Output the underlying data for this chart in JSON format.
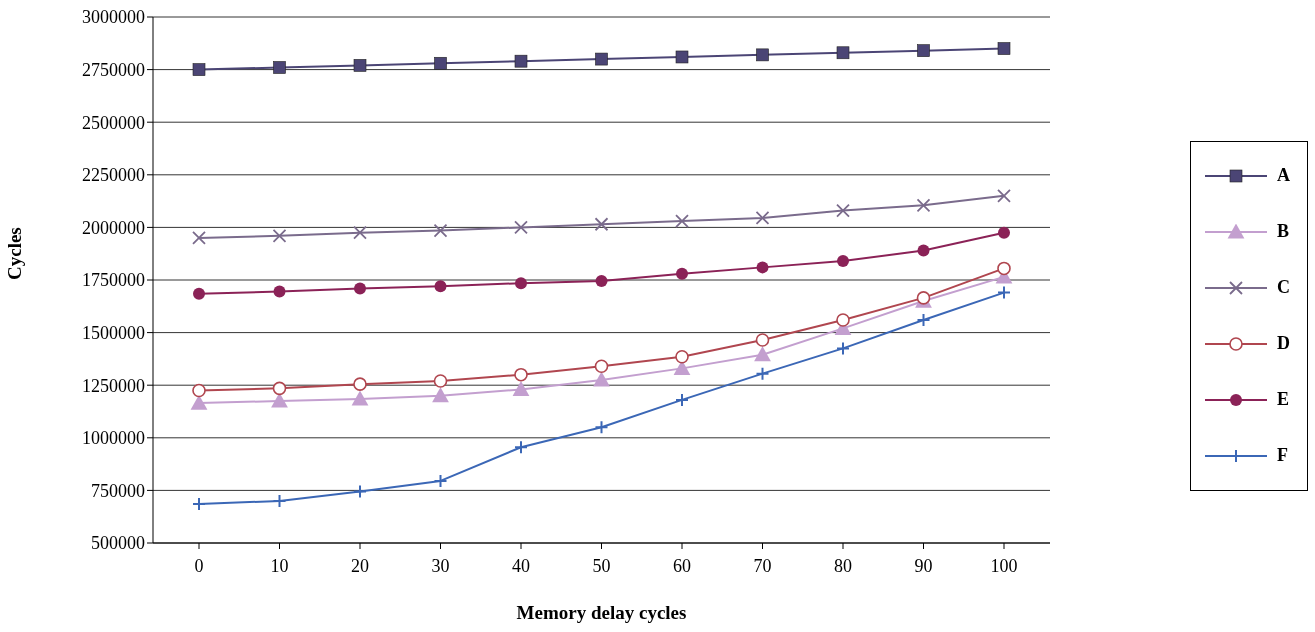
{
  "chart_data": {
    "type": "line",
    "xlabel": "Memory delay cycles",
    "ylabel": "Cycles",
    "categories": [
      "0",
      "10",
      "20",
      "30",
      "40",
      "50",
      "60",
      "70",
      "80",
      "90",
      "100"
    ],
    "series": [
      {
        "name": "A",
        "color": "#4b4575",
        "marker": "square",
        "values": [
          2750000,
          2760000,
          2770000,
          2780000,
          2790000,
          2800000,
          2810000,
          2820000,
          2830000,
          2840000,
          2850000
        ]
      },
      {
        "name": "B",
        "color": "#c39fcf",
        "marker": "triangle",
        "values": [
          1165000,
          1175000,
          1185000,
          1200000,
          1230000,
          1275000,
          1330000,
          1395000,
          1520000,
          1650000,
          1765000
        ]
      },
      {
        "name": "C",
        "color": "#7a6b8c",
        "marker": "x",
        "values": [
          1950000,
          1960000,
          1975000,
          1985000,
          2000000,
          2015000,
          2030000,
          2045000,
          2080000,
          2105000,
          2150000
        ]
      },
      {
        "name": "D",
        "color": "#b0464f",
        "marker": "open-circle",
        "values": [
          1225000,
          1235000,
          1255000,
          1270000,
          1300000,
          1340000,
          1385000,
          1465000,
          1560000,
          1665000,
          1805000
        ]
      },
      {
        "name": "E",
        "color": "#8b2257",
        "marker": "circle",
        "values": [
          1685000,
          1695000,
          1710000,
          1720000,
          1735000,
          1745000,
          1780000,
          1810000,
          1840000,
          1890000,
          1975000
        ]
      },
      {
        "name": "F",
        "color": "#3b67b6",
        "marker": "cross",
        "values": [
          685000,
          700000,
          745000,
          795000,
          955000,
          1050000,
          1180000,
          1305000,
          1425000,
          1560000,
          1690000
        ]
      }
    ],
    "ylim": [
      500000,
      3000000
    ],
    "yticks": [
      500000,
      750000,
      1000000,
      1250000,
      1500000,
      1750000,
      2000000,
      2250000,
      2500000,
      2750000,
      3000000
    ],
    "grid": "y",
    "legend": "right",
    "line_style": "solid"
  }
}
